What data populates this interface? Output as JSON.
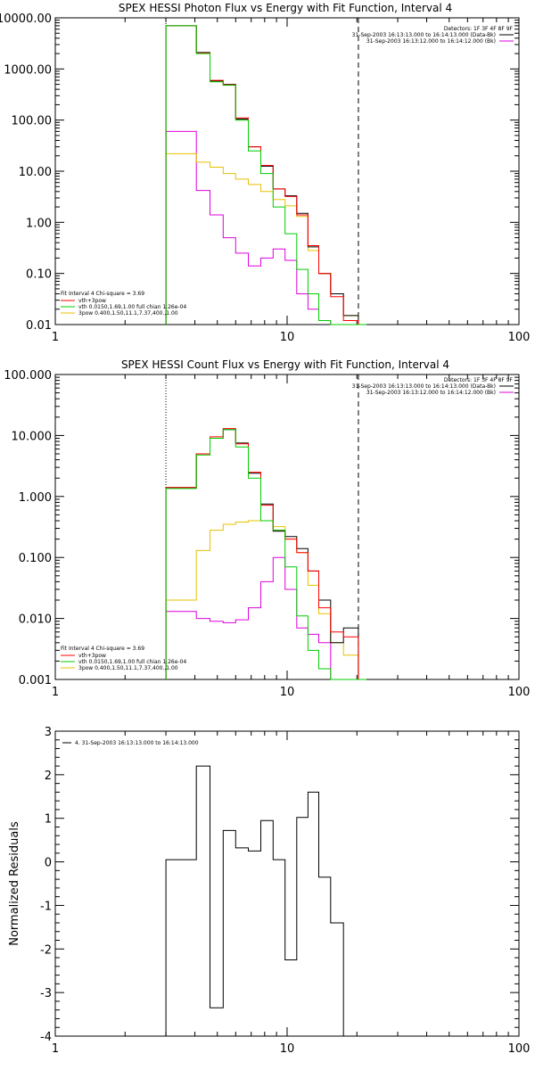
{
  "chart_data": [
    {
      "type": "line",
      "title": "SPEX HESSI Photon Flux vs Energy with Fit Function, Interval 4",
      "xlabel": "",
      "ylabel": "",
      "xscale": "log",
      "yscale": "log",
      "xlim": [
        1,
        100
      ],
      "ylim": [
        0.01,
        10000
      ],
      "xticks": [
        "1",
        "10",
        "100"
      ],
      "yticks": [
        "0.01",
        "0.10",
        "1.00",
        "10.00",
        "100.00",
        "1000.00",
        "10000.00"
      ],
      "vlines": [
        {
          "x": 3,
          "style": "dotted"
        },
        {
          "x": 20.3,
          "style": "dashed"
        }
      ],
      "header": [
        "Detectors: 1F 3F 4F 8F 9F",
        "31-Sep-2003 16:13:13.000 to 16:14:13.000 (Data-Bk)",
        "31-Sep-2003 16:13:12.000 to 16:14:12.000 (Bk)"
      ],
      "legend": [
        "Fit Interval  4   Chi-square = 3.69",
        "vth+3pow",
        "vth 0.0150,1.69,1.00  full chian 1.26e-04",
        "3pow 0.400,1.50,11.1,7.37,400.,1.00"
      ],
      "edges": [
        3.0,
        3.5,
        4.06,
        4.65,
        5.3,
        6.0,
        6.8,
        7.7,
        8.7,
        9.8,
        11.0,
        12.3,
        13.7,
        15.4,
        17.5,
        20.3,
        22.0
      ],
      "series": [
        {
          "name": "Data-Bk",
          "values": [
            7000,
            7000,
            2100,
            580,
            500,
            105,
            30,
            12.5,
            4.5,
            3.3,
            1.5,
            0.33,
            0.1,
            0.04,
            0.015,
            0.01
          ]
        },
        {
          "name": "vth+3pow",
          "values": [
            7000,
            7000,
            2050,
            600,
            490,
            110,
            30,
            13,
            4.5,
            3.2,
            1.4,
            0.35,
            0.1,
            0.035,
            0.012,
            0.01
          ]
        },
        {
          "name": "vth",
          "values": [
            7000,
            7000,
            2000,
            560,
            480,
            100,
            25,
            9,
            2,
            0.6,
            0.12,
            0.04,
            0.012,
            0.01,
            0.01,
            0.01
          ]
        },
        {
          "name": "3pow",
          "values": [
            22,
            22,
            15,
            12,
            9,
            7,
            5.5,
            4,
            2.8,
            2.1,
            1.3,
            0.28,
            0.1,
            0.04,
            0.015,
            0.01
          ]
        },
        {
          "name": "Bk",
          "values": [
            60,
            60,
            4.2,
            1.4,
            0.5,
            0.25,
            0.14,
            0.2,
            0.3,
            0.18,
            0.04,
            0.02,
            0.012,
            0.01,
            0.01,
            0.01
          ]
        }
      ]
    },
    {
      "type": "line",
      "title": "SPEX HESSI Count Flux vs Energy with Fit Function, Interval 4",
      "xlabel": "",
      "ylabel": "",
      "xscale": "log",
      "yscale": "log",
      "xlim": [
        1,
        100
      ],
      "ylim": [
        0.001,
        100
      ],
      "xticks": [
        "1",
        "10",
        "100"
      ],
      "yticks": [
        "0.001",
        "0.010",
        "0.100",
        "1.000",
        "10.000",
        "100.000"
      ],
      "vlines": [
        {
          "x": 3,
          "style": "dotted"
        },
        {
          "x": 20.3,
          "style": "dashed"
        }
      ],
      "header": [
        "Detectors: 1F 3F 4F 8F 9F",
        "31-Sep-2003 16:13:13.000 to 16:14:13.000 (Data-Bk)",
        "31-Sep-2003 16:13:12.000 to 16:14:12.000 (Bk)"
      ],
      "legend": [
        "Fit Interval  4   Chi-square = 3.69",
        "vth+3pow",
        "vth 0.0150,1.69,1.00  full chian 1.26e-04",
        "3pow 0.400,1.50,11.1,7.37,400.,1.00"
      ],
      "edges": [
        3.0,
        3.5,
        4.06,
        4.65,
        5.3,
        6.0,
        6.8,
        7.7,
        8.7,
        9.8,
        11.0,
        12.3,
        13.7,
        15.4,
        17.5,
        20.3,
        22.0
      ],
      "series": [
        {
          "name": "Data-Bk",
          "values": [
            1.4,
            1.4,
            5.0,
            9.0,
            12.5,
            7.5,
            2.4,
            0.75,
            0.27,
            0.22,
            0.14,
            0.06,
            0.02,
            0.004,
            0.007,
            0.001
          ]
        },
        {
          "name": "vth+3pow",
          "values": [
            1.4,
            1.4,
            5.0,
            9.5,
            13,
            7.3,
            2.5,
            0.72,
            0.28,
            0.2,
            0.12,
            0.06,
            0.015,
            0.006,
            0.005,
            0.001
          ]
        },
        {
          "name": "vth",
          "values": [
            1.35,
            1.35,
            4.8,
            9.0,
            12.5,
            6.5,
            2.0,
            0.4,
            0.28,
            0.07,
            0.011,
            0.003,
            0.0015,
            0.001,
            0.001,
            0.001
          ]
        },
        {
          "name": "3pow",
          "values": [
            0.02,
            0.02,
            0.13,
            0.28,
            0.35,
            0.38,
            0.4,
            0.4,
            0.32,
            0.2,
            0.12,
            0.035,
            0.012,
            0.004,
            0.0025,
            0.001
          ]
        },
        {
          "name": "Bk",
          "values": [
            0.013,
            0.013,
            0.01,
            0.009,
            0.0085,
            0.0095,
            0.015,
            0.04,
            0.1,
            0.03,
            0.007,
            0.0055,
            0.004,
            0.001,
            0.001,
            0.001
          ]
        }
      ]
    },
    {
      "type": "line",
      "title": "",
      "xlabel": "",
      "ylabel": "Normalized Residuals",
      "xscale": "log",
      "yscale": "linear",
      "xlim": [
        1,
        100
      ],
      "ylim": [
        -4,
        3
      ],
      "xticks": [
        "1",
        "10",
        "100"
      ],
      "yticks": [
        "3",
        "2",
        "1",
        "0",
        "-1",
        "-2",
        "-3",
        "-4"
      ],
      "legend": [
        "4. 31-Sep-2003 16:13:13.000 to 16:14:13.000"
      ],
      "edges": [
        3.0,
        3.5,
        4.06,
        4.65,
        5.3,
        6.0,
        6.8,
        7.7,
        8.7,
        9.8,
        11.0,
        12.3,
        13.7,
        15.4,
        17.5,
        20.3
      ],
      "series": [
        {
          "name": "4. 31-Sep-2003 16:13:13.000 to 16:14:13.000",
          "values": [
            0.05,
            0.05,
            2.2,
            -3.35,
            0.72,
            0.32,
            0.25,
            0.95,
            0.05,
            -2.25,
            1.02,
            1.6,
            -0.35,
            -1.4,
            -4.0
          ]
        }
      ]
    }
  ],
  "colors": {
    "data": "#000000",
    "total_fit": "#ff0000",
    "vth": "#00cc00",
    "pow": "#e8c000",
    "bk": "#dd00dd"
  }
}
